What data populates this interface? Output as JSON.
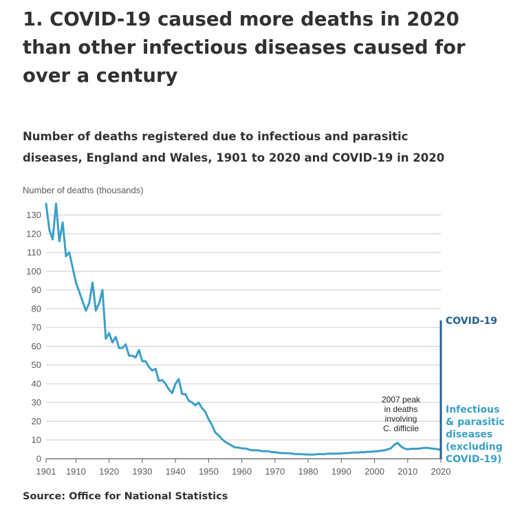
{
  "page": {
    "title": "1. COVID-19 caused more deaths in 2020 than other infectious diseases caused for over a century",
    "subtitle": "Number of deaths registered due to infectious and parasitic diseases, England and Wales, 1901 to 2020 and COVID-19 in 2020",
    "source": "Source: Office for National Statistics"
  },
  "chart_data": {
    "type": "line",
    "ylabel": "Number of deaths (thousands)",
    "xlim": [
      1901,
      2020
    ],
    "ylim": [
      0,
      135
    ],
    "grid": true,
    "yticks": [
      0,
      10,
      20,
      30,
      40,
      50,
      60,
      70,
      80,
      90,
      100,
      110,
      120,
      130
    ],
    "xticks": [
      1901,
      1910,
      1920,
      1930,
      1940,
      1950,
      1960,
      1970,
      1980,
      1990,
      2000,
      2010,
      2020
    ],
    "colors": {
      "infectious": "#3a9fc8",
      "covid": "#206095",
      "grid": "#cccccc",
      "axis": "#595959"
    },
    "series": [
      {
        "name": "Infectious & parasitic diseases (excluding COVID-19)",
        "x": [
          1901,
          1902,
          1903,
          1904,
          1905,
          1906,
          1907,
          1908,
          1909,
          1910,
          1911,
          1912,
          1913,
          1914,
          1915,
          1916,
          1917,
          1918,
          1919,
          1920,
          1921,
          1922,
          1923,
          1924,
          1925,
          1926,
          1927,
          1928,
          1929,
          1930,
          1931,
          1932,
          1933,
          1934,
          1935,
          1936,
          1937,
          1938,
          1939,
          1940,
          1941,
          1942,
          1943,
          1944,
          1945,
          1946,
          1947,
          1948,
          1949,
          1950,
          1951,
          1952,
          1953,
          1954,
          1955,
          1956,
          1957,
          1958,
          1959,
          1960,
          1961,
          1962,
          1963,
          1964,
          1965,
          1966,
          1967,
          1968,
          1969,
          1970,
          1971,
          1972,
          1973,
          1974,
          1975,
          1976,
          1977,
          1978,
          1979,
          1980,
          1981,
          1982,
          1983,
          1984,
          1985,
          1986,
          1987,
          1988,
          1989,
          1990,
          1991,
          1992,
          1993,
          1994,
          1995,
          1996,
          1997,
          1998,
          1999,
          2000,
          2001,
          2002,
          2003,
          2004,
          2005,
          2006,
          2007,
          2008,
          2009,
          2010,
          2011,
          2012,
          2013,
          2014,
          2015,
          2016,
          2017,
          2018,
          2019,
          2020
        ],
        "values": [
          136,
          122,
          117,
          136,
          116,
          126,
          108,
          110,
          102,
          94,
          89,
          84,
          79,
          83,
          94,
          79,
          83,
          90,
          64,
          67,
          62,
          65,
          59,
          59,
          61,
          55,
          55,
          54,
          58,
          52,
          52,
          49,
          47,
          48,
          41.5,
          42,
          40,
          37,
          35,
          40,
          42.5,
          34.5,
          34.5,
          31,
          30,
          28.5,
          30,
          27,
          25,
          21,
          18,
          14,
          12.5,
          10.5,
          9,
          8,
          7,
          6,
          6,
          5.5,
          5.5,
          5,
          4.5,
          4.5,
          4.5,
          4,
          4,
          4,
          3.5,
          3.5,
          3.2,
          3,
          3,
          3,
          2.8,
          2.5,
          2.5,
          2.5,
          2.3,
          2.2,
          2.2,
          2.2,
          2.5,
          2.5,
          2.5,
          2.7,
          2.7,
          2.7,
          2.7,
          2.8,
          3,
          3,
          3.2,
          3.3,
          3.3,
          3.5,
          3.5,
          3.7,
          3.7,
          4,
          4,
          4.3,
          4.5,
          5,
          5.7,
          7.5,
          8.5,
          6.5,
          5.5,
          5,
          5.3,
          5.3,
          5.3,
          5.5,
          5.8,
          5.8,
          5.5,
          5.3,
          5.1,
          4.7
        ]
      },
      {
        "name": "COVID-19",
        "x": [
          2020,
          2020
        ],
        "values": [
          0,
          73.8
        ]
      }
    ],
    "labels": {
      "covid": "COVID-19",
      "infectious": [
        "Infectious",
        "& parasitic",
        "diseases",
        "(excluding",
        "COVID-19)"
      ],
      "annotation": [
        "2007 peak",
        "in deaths",
        "involving",
        "C. difficile"
      ]
    }
  }
}
